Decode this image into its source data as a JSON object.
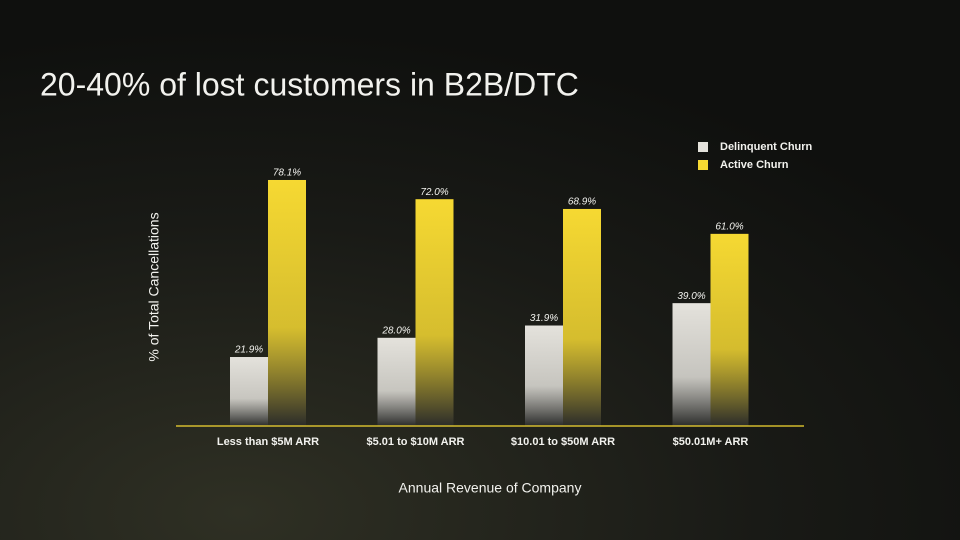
{
  "chart_data": {
    "type": "bar",
    "title": "20-40% of lost customers in B2B/DTC",
    "x_label": "Annual Revenue of Company",
    "y_label": "% of Total Cancellations",
    "categories": [
      "Less than $5M ARR",
      "$5.01 to $10M ARR",
      "$10.01 to $50M ARR",
      "$50.01M+ ARR"
    ],
    "series": [
      {
        "name": "Delinquent Churn",
        "color": "#e4e2dc",
        "values": [
          21.9,
          28.0,
          31.9,
          39.0
        ],
        "value_labels": [
          "21.9%",
          "28.0%",
          "31.9%",
          "39.0%"
        ]
      },
      {
        "name": "Active Churn",
        "color": "#f6d932",
        "values": [
          78.1,
          72.0,
          68.9,
          61.0
        ],
        "value_labels": [
          "78.1%",
          "72.0%",
          "68.9%",
          "61.0%"
        ]
      }
    ],
    "ylim": [
      0,
      100
    ],
    "legend": "top-right"
  }
}
